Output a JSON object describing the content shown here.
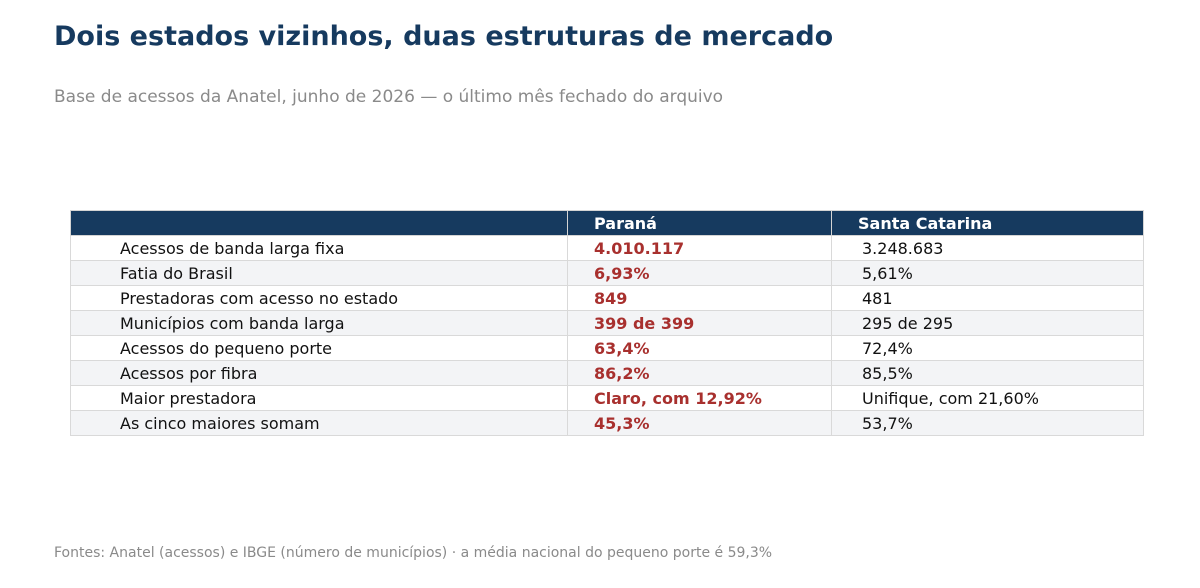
{
  "title": "Dois estados vizinhos, duas estruturas de mercado",
  "subtitle": "Base de acessos da Anatel, junho de 2026 — o último mês fechado do arquivo",
  "footer": "Fontes: Anatel (acessos) e IBGE (número de municípios) · a média nacional do pequeno porte é 59,3%",
  "colors": {
    "header_bg": "#163a5f",
    "highlight": "#a8302e",
    "row_alt": "#f3f4f6"
  },
  "chart_data": {
    "type": "table",
    "title": "Dois estados vizinhos, duas estruturas de mercado",
    "columns": [
      "",
      "Paraná",
      "Santa Catarina"
    ],
    "rows": [
      [
        "Acessos de banda larga fixa",
        "4.010.117",
        "3.248.683"
      ],
      [
        "Fatia do Brasil",
        "6,93%",
        "5,61%"
      ],
      [
        "Prestadoras com acesso no estado",
        "849",
        "481"
      ],
      [
        "Municípios com banda larga",
        "399 de 399",
        "295 de 295"
      ],
      [
        "Acessos do pequeno porte",
        "63,4%",
        "72,4%"
      ],
      [
        "Acessos por fibra",
        "86,2%",
        "85,5%"
      ],
      [
        "Maior prestadora",
        "Claro, com 12,92%",
        "Unifique, com 21,60%"
      ],
      [
        "As cinco maiores somam",
        "45,3%",
        "53,7%"
      ]
    ],
    "highlighted_column": "Paraná"
  }
}
